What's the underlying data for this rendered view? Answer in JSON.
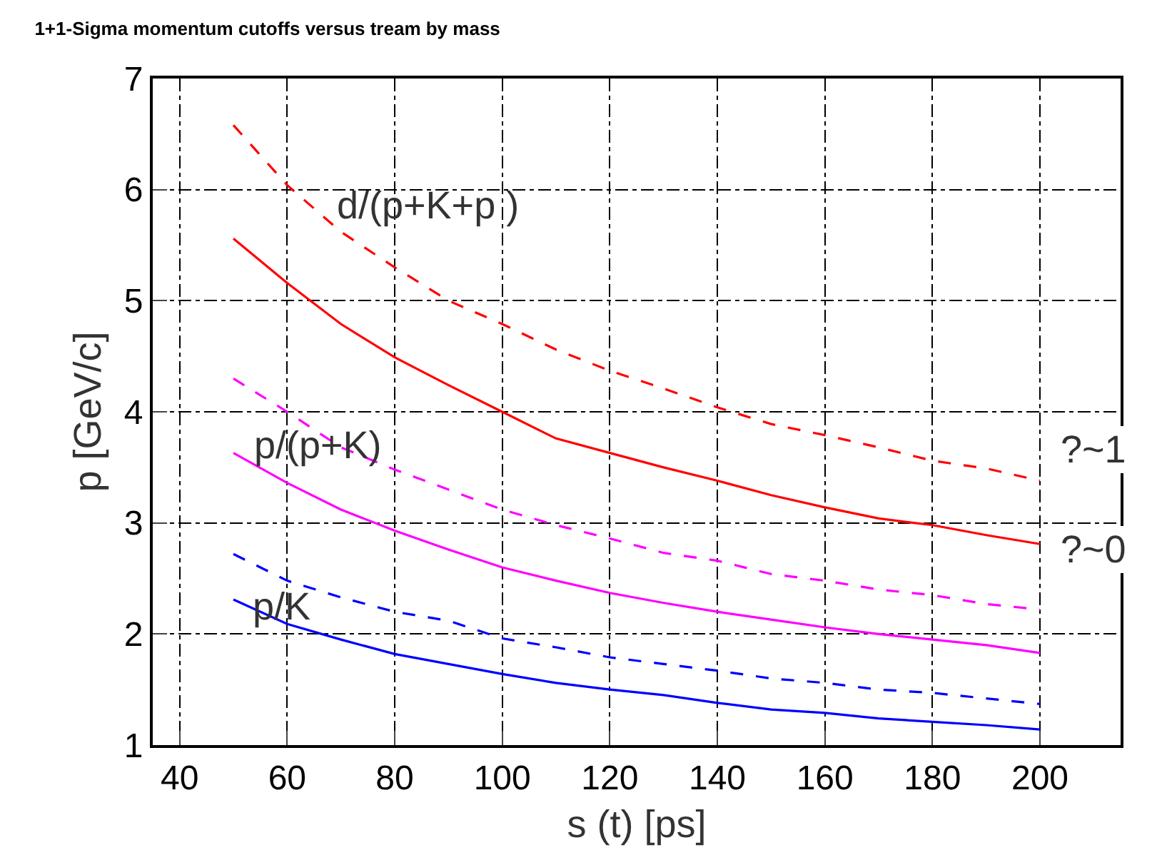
{
  "chart_data": {
    "type": "line",
    "title": "1+1-Sigma momentum cutoffs versus tream by mass",
    "xlabel": "s (t) [ps]",
    "ylabel": "p [GeV/c]",
    "x": [
      50,
      60,
      70,
      80,
      90,
      100,
      110,
      120,
      130,
      140,
      150,
      160,
      170,
      180,
      190,
      200
    ],
    "series": [
      {
        "color": "#ff0000",
        "line_style": "dashed",
        "values": [
          6.58,
          6.04,
          5.62,
          5.3,
          5.0,
          4.79,
          4.56,
          4.37,
          4.21,
          4.04,
          3.89,
          3.79,
          3.68,
          3.56,
          3.49,
          3.38
        ]
      },
      {
        "color": "#ff0000",
        "line_style": "solid",
        "values": [
          5.56,
          5.16,
          4.79,
          4.49,
          4.24,
          4.0,
          3.76,
          3.63,
          3.5,
          3.38,
          3.25,
          3.14,
          3.04,
          2.98,
          2.89,
          2.81
        ]
      },
      {
        "color": "#ff00ff",
        "line_style": "dashed",
        "values": [
          4.3,
          4.0,
          3.68,
          3.48,
          3.3,
          3.12,
          2.98,
          2.86,
          2.73,
          2.66,
          2.54,
          2.48,
          2.4,
          2.35,
          2.27,
          2.22
        ]
      },
      {
        "color": "#ff00ff",
        "line_style": "solid",
        "values": [
          3.63,
          3.36,
          3.12,
          2.93,
          2.76,
          2.6,
          2.48,
          2.37,
          2.28,
          2.2,
          2.13,
          2.06,
          2.0,
          1.95,
          1.9,
          1.83
        ]
      },
      {
        "color": "#0000ff",
        "line_style": "dashed",
        "values": [
          2.72,
          2.48,
          2.33,
          2.2,
          2.12,
          1.96,
          1.88,
          1.79,
          1.73,
          1.67,
          1.6,
          1.56,
          1.5,
          1.47,
          1.42,
          1.37
        ]
      },
      {
        "color": "#0000ff",
        "line_style": "solid",
        "values": [
          2.31,
          2.09,
          1.95,
          1.82,
          1.73,
          1.64,
          1.56,
          1.5,
          1.45,
          1.38,
          1.32,
          1.29,
          1.24,
          1.21,
          1.18,
          1.14
        ]
      }
    ],
    "annotations": [
      "d/(p+K+p )",
      "p/(p+K)",
      "p/K",
      "?~1",
      "?~0"
    ],
    "xlim": [
      35,
      215
    ],
    "ylim": [
      1,
      7
    ],
    "xticks": [
      40,
      60,
      80,
      100,
      120,
      140,
      160,
      180,
      200
    ],
    "yticks": [
      1,
      2,
      3,
      4,
      5,
      6,
      7
    ],
    "grid": true,
    "marker": "none"
  }
}
